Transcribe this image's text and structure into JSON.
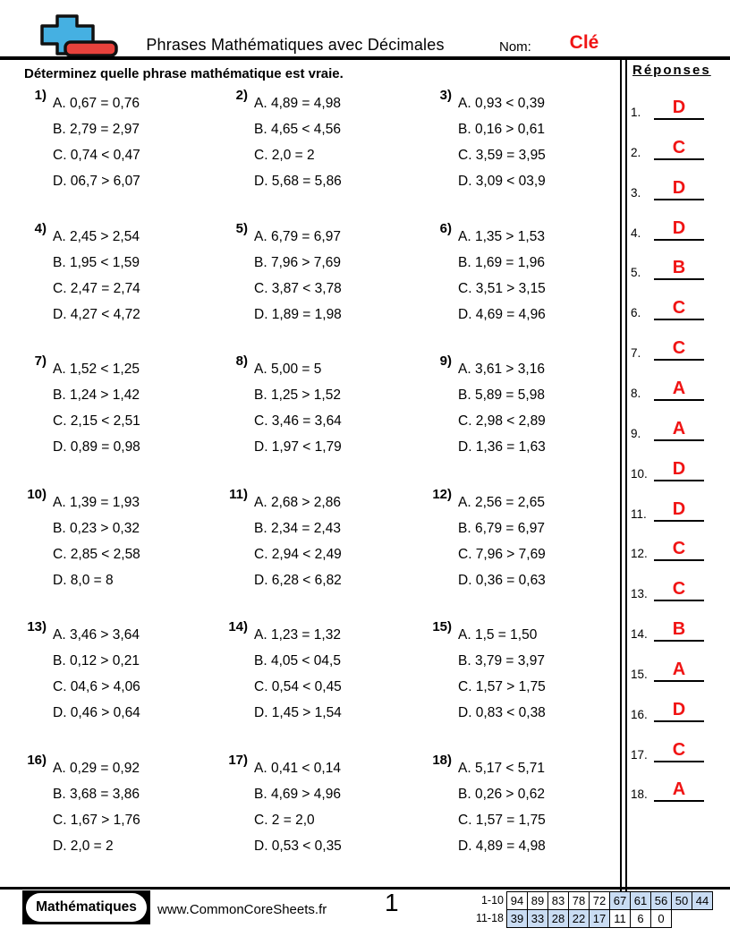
{
  "header": {
    "title": "Phrases Mathématiques avec Décimales",
    "name_label": "Nom:",
    "name_value": "Clé"
  },
  "instruction": "Déterminez quelle phrase mathématique est vraie.",
  "problems": [
    {
      "label": "1)",
      "options": [
        "A. 0,67 = 0,76",
        "B. 2,79 = 2,97",
        "C. 0,74 < 0,47",
        "D. 06,7 > 6,07"
      ]
    },
    {
      "label": "2)",
      "options": [
        "A. 4,89 = 4,98",
        "B. 4,65 < 4,56",
        "C. 2,0 = 2",
        "D. 5,68 = 5,86"
      ]
    },
    {
      "label": "3)",
      "options": [
        "A. 0,93 < 0,39",
        "B. 0,16 > 0,61",
        "C. 3,59 = 3,95",
        "D. 3,09 < 03,9"
      ]
    },
    {
      "label": "4)",
      "options": [
        "A. 2,45 > 2,54",
        "B. 1,95 < 1,59",
        "C. 2,47 = 2,74",
        "D. 4,27 < 4,72"
      ]
    },
    {
      "label": "5)",
      "options": [
        "A. 6,79 = 6,97",
        "B. 7,96 > 7,69",
        "C. 3,87 < 3,78",
        "D. 1,89 = 1,98"
      ]
    },
    {
      "label": "6)",
      "options": [
        "A. 1,35 > 1,53",
        "B. 1,69 = 1,96",
        "C. 3,51 > 3,15",
        "D. 4,69 = 4,96"
      ]
    },
    {
      "label": "7)",
      "options": [
        "A. 1,52 < 1,25",
        "B. 1,24 > 1,42",
        "C. 2,15 < 2,51",
        "D. 0,89 = 0,98"
      ]
    },
    {
      "label": "8)",
      "options": [
        "A. 5,00 = 5",
        "B. 1,25 > 1,52",
        "C. 3,46 = 3,64",
        "D. 1,97 < 1,79"
      ]
    },
    {
      "label": "9)",
      "options": [
        "A. 3,61 > 3,16",
        "B. 5,89 = 5,98",
        "C. 2,98 < 2,89",
        "D. 1,36 = 1,63"
      ]
    },
    {
      "label": "10)",
      "options": [
        "A. 1,39 = 1,93",
        "B. 0,23 > 0,32",
        "C. 2,85 < 2,58",
        "D. 8,0 = 8"
      ]
    },
    {
      "label": "11)",
      "options": [
        "A. 2,68 > 2,86",
        "B. 2,34 = 2,43",
        "C. 2,94 < 2,49",
        "D. 6,28 < 6,82"
      ]
    },
    {
      "label": "12)",
      "options": [
        "A. 2,56 = 2,65",
        "B. 6,79 = 6,97",
        "C. 7,96 > 7,69",
        "D. 0,36 = 0,63"
      ]
    },
    {
      "label": "13)",
      "options": [
        "A. 3,46 > 3,64",
        "B. 0,12 > 0,21",
        "C. 04,6 > 4,06",
        "D. 0,46 > 0,64"
      ]
    },
    {
      "label": "14)",
      "options": [
        "A. 1,23 = 1,32",
        "B. 4,05 < 04,5",
        "C. 0,54 < 0,45",
        "D. 1,45 > 1,54"
      ]
    },
    {
      "label": "15)",
      "options": [
        "A. 1,5 = 1,50",
        "B. 3,79 = 3,97",
        "C. 1,57 > 1,75",
        "D. 0,83 < 0,38"
      ]
    },
    {
      "label": "16)",
      "options": [
        "A. 0,29 = 0,92",
        "B. 3,68 = 3,86",
        "C. 1,67 > 1,76",
        "D. 2,0 = 2"
      ]
    },
    {
      "label": "17)",
      "options": [
        "A. 0,41 < 0,14",
        "B. 4,69 > 4,96",
        "C. 2 = 2,0",
        "D. 0,53 < 0,35"
      ]
    },
    {
      "label": "18)",
      "options": [
        "A. 5,17 < 5,71",
        "B. 0,26 > 0,62",
        "C. 1,57 = 1,75",
        "D. 4,89 = 4,98"
      ]
    }
  ],
  "answers_panel": {
    "title": "Réponses",
    "items": [
      {
        "n": "1.",
        "a": "D"
      },
      {
        "n": "2.",
        "a": "C"
      },
      {
        "n": "3.",
        "a": "D"
      },
      {
        "n": "4.",
        "a": "D"
      },
      {
        "n": "5.",
        "a": "B"
      },
      {
        "n": "6.",
        "a": "C"
      },
      {
        "n": "7.",
        "a": "C"
      },
      {
        "n": "8.",
        "a": "A"
      },
      {
        "n": "9.",
        "a": "A"
      },
      {
        "n": "10.",
        "a": "D"
      },
      {
        "n": "11.",
        "a": "D"
      },
      {
        "n": "12.",
        "a": "C"
      },
      {
        "n": "13.",
        "a": "C"
      },
      {
        "n": "14.",
        "a": "B"
      },
      {
        "n": "15.",
        "a": "A"
      },
      {
        "n": "16.",
        "a": "D"
      },
      {
        "n": "17.",
        "a": "C"
      },
      {
        "n": "18.",
        "a": "A"
      }
    ]
  },
  "footer": {
    "badge_label": "Mathématiques",
    "website": "www.CommonCoreSheets.fr",
    "page_number": "1",
    "score_table": {
      "rows": [
        {
          "label": "1-10",
          "values": [
            "94",
            "89",
            "83",
            "78",
            "72",
            "67",
            "61",
            "56",
            "50",
            "44"
          ],
          "shaded": [
            false,
            false,
            false,
            false,
            false,
            true,
            true,
            true,
            true,
            true
          ]
        },
        {
          "label": "11-18",
          "values": [
            "39",
            "33",
            "28",
            "22",
            "17",
            "11",
            "6",
            "0"
          ],
          "shaded": [
            true,
            true,
            true,
            true,
            true,
            false,
            false,
            false
          ]
        }
      ]
    }
  },
  "colors": {
    "accent_red": "#f01414",
    "table_shade": "#c9dcf3",
    "logo_plus": "#45b0e2",
    "logo_minus": "#e8423c"
  }
}
